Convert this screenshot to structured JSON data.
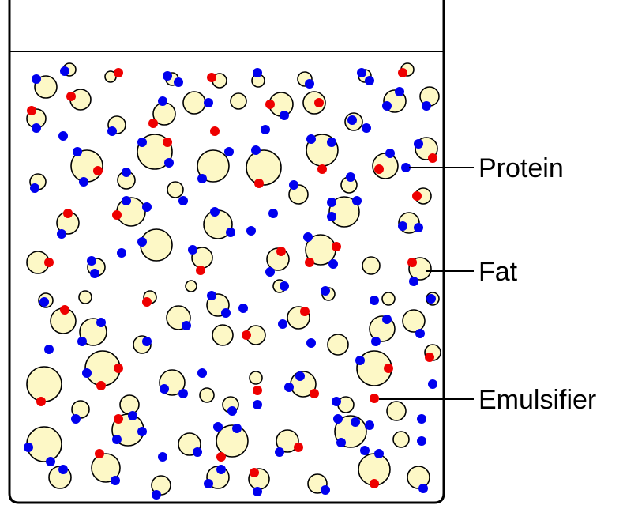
{
  "labels": {
    "protein": "Protein",
    "fat": "Fat",
    "emulsifier": "Emulsifier"
  },
  "colors": {
    "fat_fill": "#fdf8c6",
    "outline": "#000000",
    "protein": "#0000ee",
    "emulsifier": "#ee0000"
  }
}
